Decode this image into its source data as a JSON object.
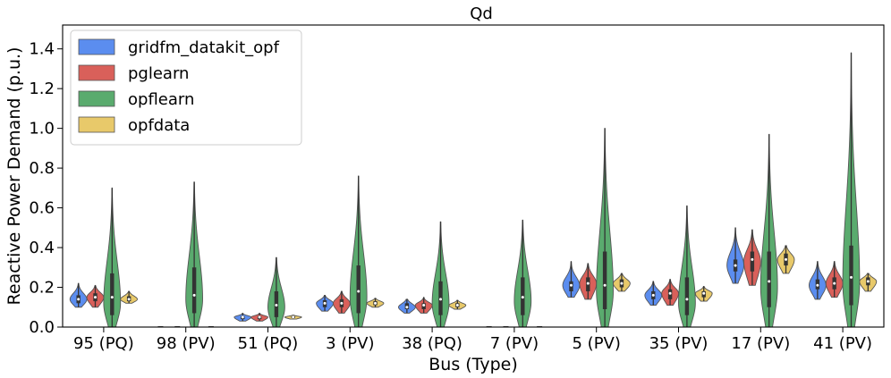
{
  "chart_data": {
    "type": "violin",
    "title": "Qd",
    "xlabel": "Bus (Type)",
    "ylabel": "Reactive Power Demand (p.u.)",
    "ylim": [
      0.0,
      1.52
    ],
    "yticks": [
      0.0,
      0.2,
      0.4,
      0.6,
      0.8,
      1.0,
      1.2,
      1.4
    ],
    "ytick_labels": [
      "0.0",
      "0.2",
      "0.4",
      "0.6",
      "0.8",
      "1.0",
      "1.2",
      "1.4"
    ],
    "grid": false,
    "legend_position": "upper-left",
    "categories": [
      "95 (PQ)",
      "98 (PV)",
      "51 (PQ)",
      "3 (PV)",
      "38 (PQ)",
      "7 (PV)",
      "5 (PV)",
      "35 (PV)",
      "17 (PV)",
      "41 (PV)"
    ],
    "series": [
      {
        "name": "gridfm_datakit_opf",
        "color": "#5b8def",
        "stats": [
          {
            "min": 0.1,
            "q1": 0.12,
            "median": 0.14,
            "q3": 0.16,
            "max": 0.22,
            "mode": 0.14
          },
          null,
          {
            "min": 0.03,
            "q1": 0.04,
            "median": 0.05,
            "q3": 0.055,
            "max": 0.07,
            "mode": 0.05
          },
          {
            "min": 0.08,
            "q1": 0.1,
            "median": 0.12,
            "q3": 0.135,
            "max": 0.16,
            "mode": 0.12
          },
          {
            "min": 0.07,
            "q1": 0.09,
            "median": 0.1,
            "q3": 0.12,
            "max": 0.14,
            "mode": 0.1
          },
          null,
          {
            "min": 0.15,
            "q1": 0.18,
            "median": 0.21,
            "q3": 0.23,
            "max": 0.33,
            "mode": 0.21
          },
          {
            "min": 0.11,
            "q1": 0.14,
            "median": 0.16,
            "q3": 0.18,
            "max": 0.23,
            "mode": 0.16
          },
          {
            "min": 0.22,
            "q1": 0.28,
            "median": 0.31,
            "q3": 0.34,
            "max": 0.5,
            "mode": 0.31
          },
          {
            "min": 0.14,
            "q1": 0.19,
            "median": 0.21,
            "q3": 0.24,
            "max": 0.33,
            "mode": 0.21
          }
        ]
      },
      {
        "name": "pglearn",
        "color": "#d9605a",
        "stats": [
          {
            "min": 0.1,
            "q1": 0.13,
            "median": 0.15,
            "q3": 0.17,
            "max": 0.21,
            "mode": 0.15
          },
          null,
          {
            "min": 0.03,
            "q1": 0.04,
            "median": 0.05,
            "q3": 0.055,
            "max": 0.07,
            "mode": 0.05
          },
          {
            "min": 0.07,
            "q1": 0.1,
            "median": 0.12,
            "q3": 0.14,
            "max": 0.18,
            "mode": 0.12
          },
          {
            "min": 0.07,
            "q1": 0.09,
            "median": 0.11,
            "q3": 0.12,
            "max": 0.15,
            "mode": 0.11
          },
          null,
          {
            "min": 0.14,
            "q1": 0.18,
            "median": 0.22,
            "q3": 0.25,
            "max": 0.32,
            "mode": 0.22
          },
          {
            "min": 0.11,
            "q1": 0.14,
            "median": 0.17,
            "q3": 0.19,
            "max": 0.24,
            "mode": 0.17
          },
          {
            "min": 0.21,
            "q1": 0.28,
            "median": 0.34,
            "q3": 0.38,
            "max": 0.49,
            "mode": 0.33
          },
          {
            "min": 0.15,
            "q1": 0.19,
            "median": 0.22,
            "q3": 0.25,
            "max": 0.33,
            "mode": 0.22
          }
        ]
      },
      {
        "name": "opflearn",
        "color": "#5aab6e",
        "stats": [
          {
            "min": 0.0,
            "q1": 0.06,
            "median": 0.15,
            "q3": 0.27,
            "max": 0.7,
            "mode": 0.12
          },
          {
            "min": 0.0,
            "q1": 0.07,
            "median": 0.16,
            "q3": 0.3,
            "max": 0.73,
            "mode": 0.14
          },
          {
            "min": 0.0,
            "q1": 0.05,
            "median": 0.11,
            "q3": 0.18,
            "max": 0.35,
            "mode": 0.1
          },
          {
            "min": 0.0,
            "q1": 0.07,
            "median": 0.18,
            "q3": 0.31,
            "max": 0.76,
            "mode": 0.15
          },
          {
            "min": 0.0,
            "q1": 0.06,
            "median": 0.14,
            "q3": 0.23,
            "max": 0.53,
            "mode": 0.12
          },
          {
            "min": 0.0,
            "q1": 0.06,
            "median": 0.15,
            "q3": 0.25,
            "max": 0.54,
            "mode": 0.13
          },
          {
            "min": 0.0,
            "q1": 0.09,
            "median": 0.21,
            "q3": 0.38,
            "max": 1.0,
            "mode": 0.18
          },
          {
            "min": 0.0,
            "q1": 0.06,
            "median": 0.14,
            "q3": 0.25,
            "max": 0.61,
            "mode": 0.12
          },
          {
            "min": 0.0,
            "q1": 0.1,
            "median": 0.23,
            "q3": 0.38,
            "max": 0.97,
            "mode": 0.2
          },
          {
            "min": 0.0,
            "q1": 0.11,
            "median": 0.25,
            "q3": 0.41,
            "max": 1.38,
            "mode": 0.22
          }
        ]
      },
      {
        "name": "opfdata",
        "color": "#e8c96a",
        "stats": [
          {
            "min": 0.12,
            "q1": 0.13,
            "median": 0.14,
            "q3": 0.155,
            "max": 0.18,
            "mode": 0.14
          },
          null,
          {
            "min": 0.04,
            "q1": 0.045,
            "median": 0.05,
            "q3": 0.055,
            "max": 0.06,
            "mode": 0.05
          },
          {
            "min": 0.1,
            "q1": 0.11,
            "median": 0.12,
            "q3": 0.13,
            "max": 0.145,
            "mode": 0.12
          },
          {
            "min": 0.09,
            "q1": 0.1,
            "median": 0.11,
            "q3": 0.12,
            "max": 0.135,
            "mode": 0.11
          },
          null,
          {
            "min": 0.18,
            "q1": 0.2,
            "median": 0.22,
            "q3": 0.24,
            "max": 0.27,
            "mode": 0.22
          },
          {
            "min": 0.13,
            "q1": 0.15,
            "median": 0.17,
            "q3": 0.18,
            "max": 0.205,
            "mode": 0.17
          },
          {
            "min": 0.27,
            "q1": 0.31,
            "median": 0.34,
            "q3": 0.37,
            "max": 0.41,
            "mode": 0.34
          },
          {
            "min": 0.18,
            "q1": 0.21,
            "median": 0.23,
            "q3": 0.25,
            "max": 0.27,
            "mode": 0.23
          }
        ]
      }
    ],
    "collapsed_near_zero": [
      {
        "series": "opfdata",
        "category": "98 (PV)",
        "value": 0.0
      },
      {
        "series": "opfdata",
        "category": "7 (PV)",
        "value": 0.0
      }
    ]
  }
}
